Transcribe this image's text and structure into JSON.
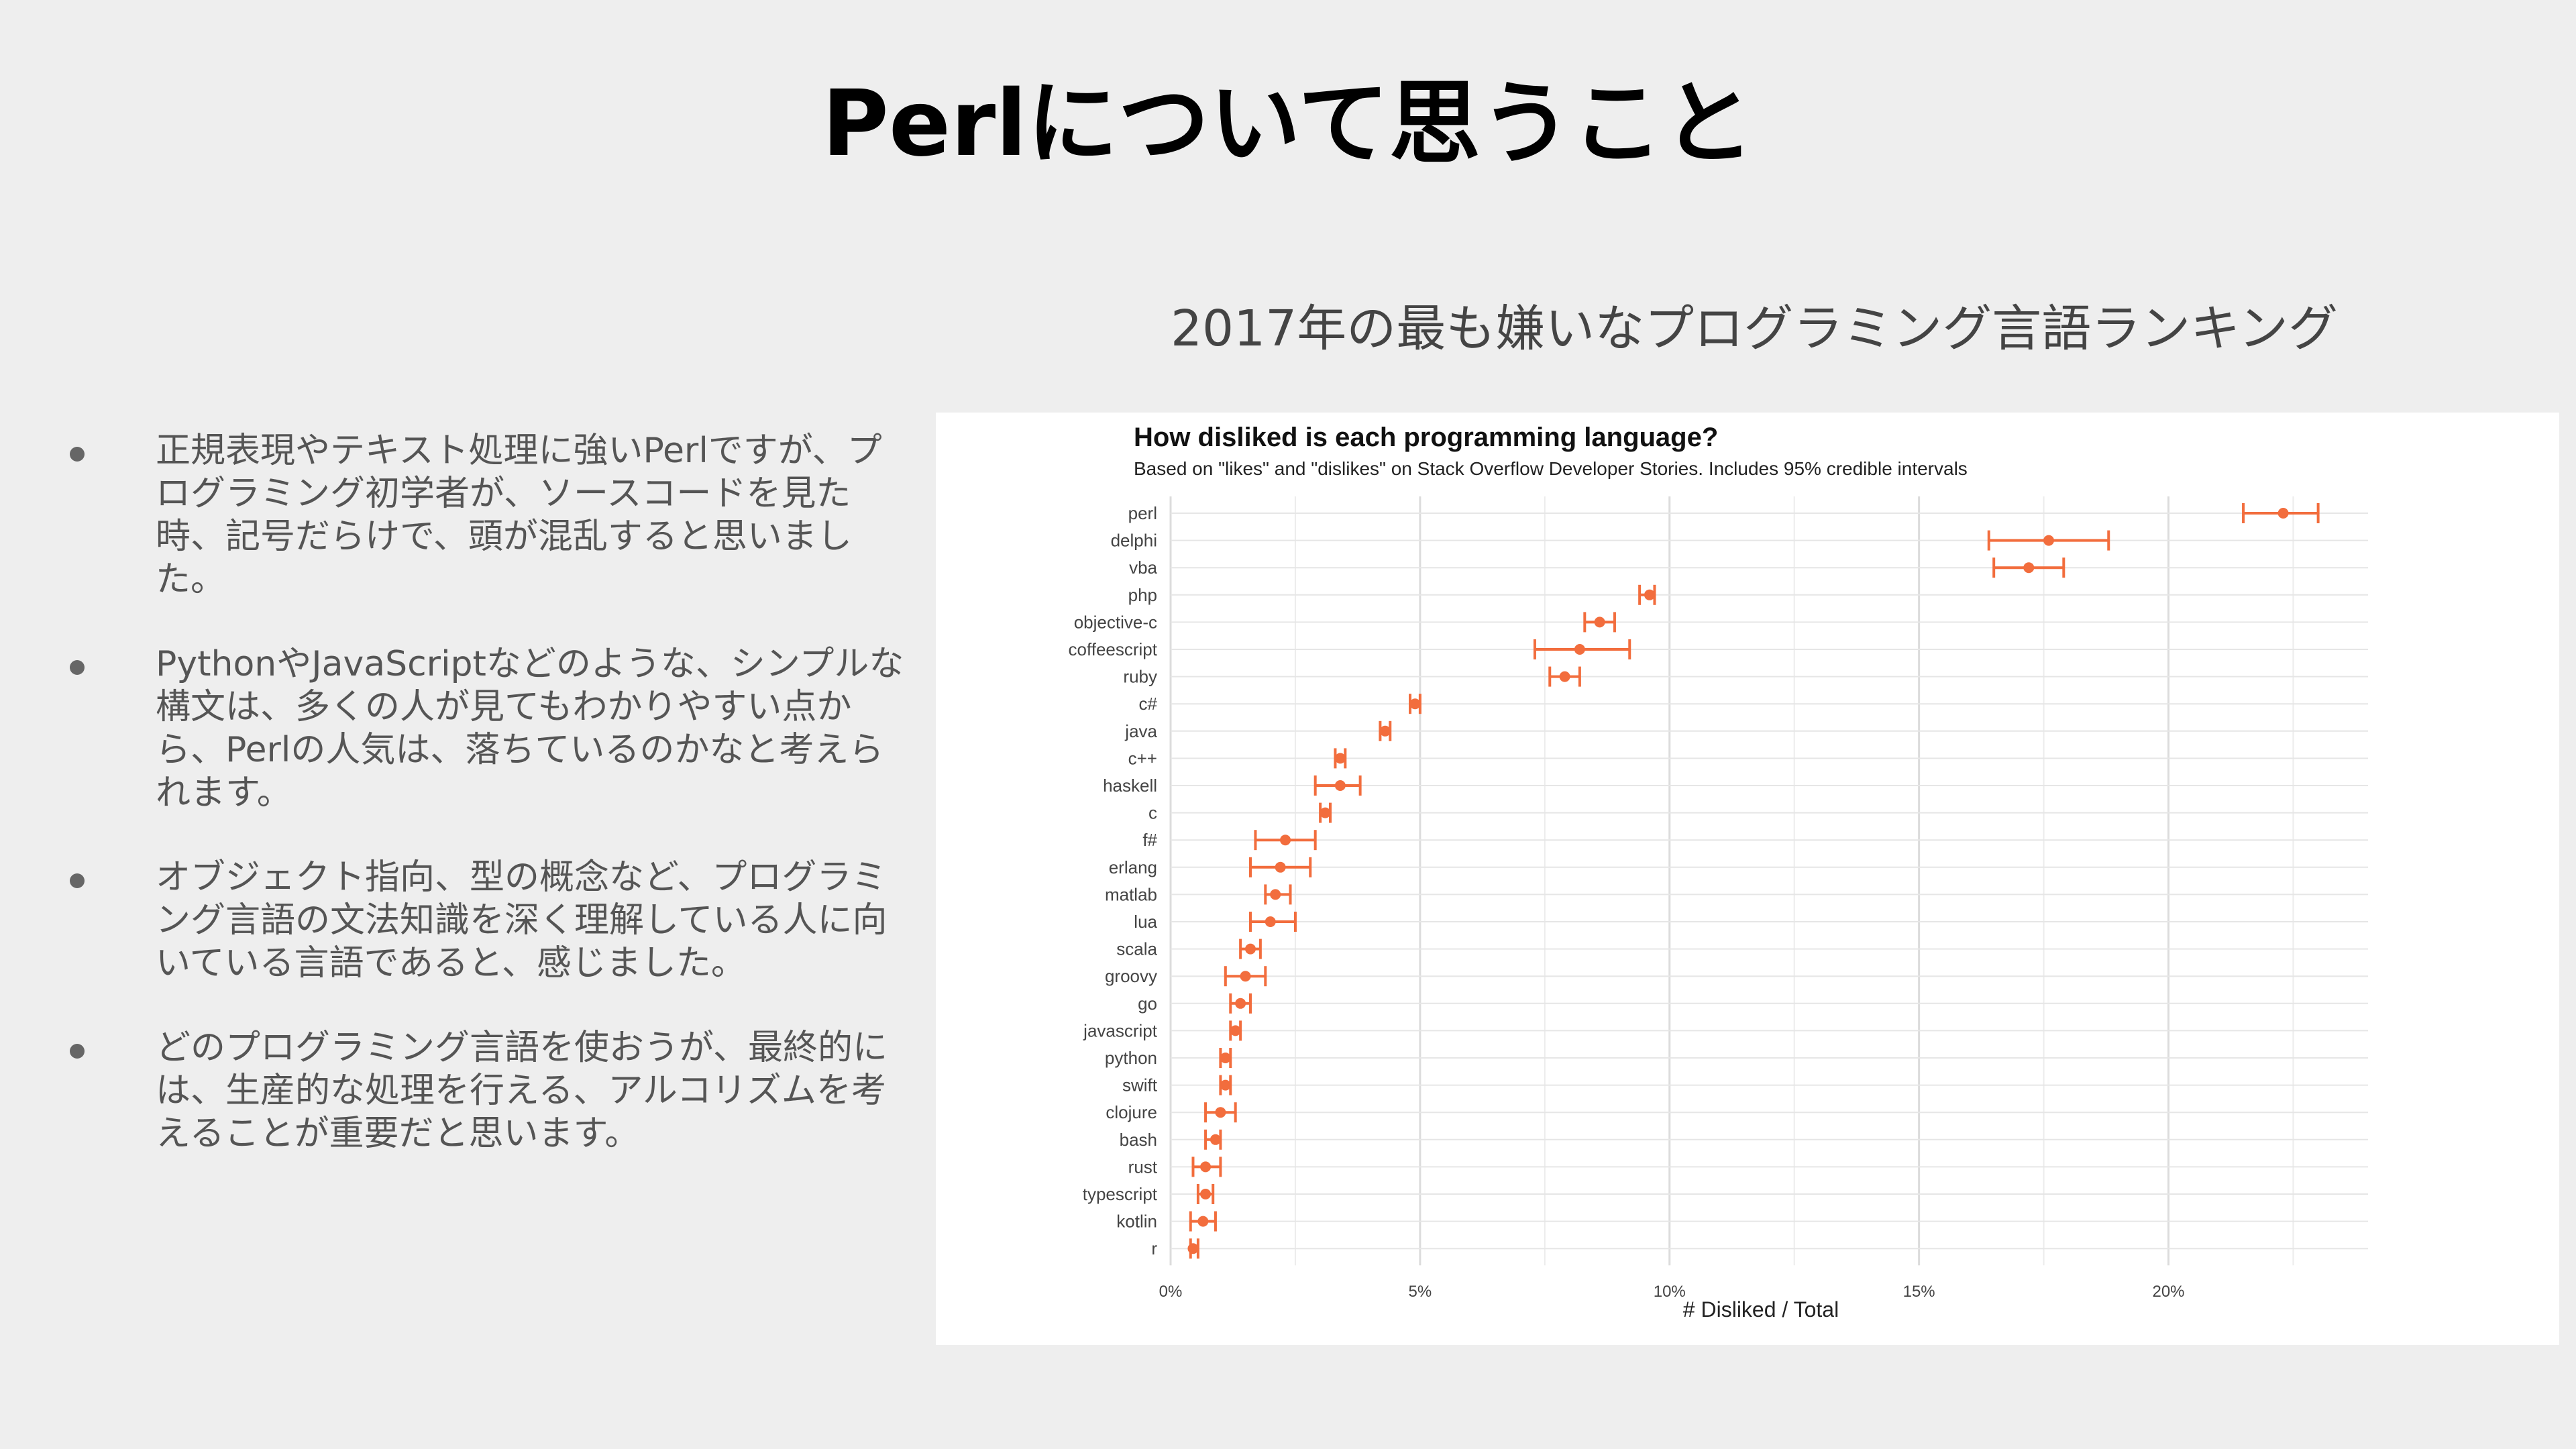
{
  "slide": {
    "title": "Perlについて思うこと",
    "chart_heading": "2017年の最も嫌いなプログラミング言語ランキング"
  },
  "bullets": [
    {
      "text": "正規表現やテキスト処理に強いPerlですが、プログラミング初学者が、ソースコードを見た時、記号だらけで、頭が混乱すると思いました。"
    },
    {
      "text": "PythonやJavaScriptなどのような、シンプルな構文は、多くの人が見てもわかりやすい点から、Perlの人気は、落ちているのかなと考えられます。"
    },
    {
      "text": "オブジェクト指向、型の概念など、プログラミング言語の文法知識を深く理解している人に向いている言語であると、感じました。"
    },
    {
      "text": "どのプログラミング言語を使おうが、最終的には、生産的な処理を行える、アルコリズムを考えることが重要だと思います。"
    }
  ],
  "colors": {
    "background": "#eeeeee",
    "accent": "#f26d3d",
    "grid": "#e6e6e6"
  },
  "chart_data": {
    "type": "scatter",
    "title": "How disliked is each programming language?",
    "subtitle": "Based on \"likes\" and \"dislikes\" on Stack Overflow Developer Stories. Includes 95% credible intervals",
    "xlabel": "# Disliked / Total",
    "ylabel": "",
    "xlim": [
      0,
      24
    ],
    "x_ticks": [
      0,
      5,
      10,
      15,
      20
    ],
    "x_tick_labels": [
      "0%",
      "5%",
      "10%",
      "15%",
      "20%"
    ],
    "grid": true,
    "categories": [
      "perl",
      "delphi",
      "vba",
      "php",
      "objective-c",
      "coffeescript",
      "ruby",
      "c#",
      "java",
      "c++",
      "haskell",
      "c",
      "f#",
      "erlang",
      "matlab",
      "lua",
      "scala",
      "groovy",
      "go",
      "javascript",
      "python",
      "swift",
      "clojure",
      "bash",
      "rust",
      "typescript",
      "kotlin",
      "r"
    ],
    "series": [
      {
        "values": [
          22.3,
          17.6,
          17.2,
          9.6,
          8.6,
          8.2,
          7.9,
          4.9,
          4.3,
          3.4,
          3.4,
          3.1,
          2.3,
          2.2,
          2.1,
          2.0,
          1.6,
          1.5,
          1.4,
          1.3,
          1.1,
          1.1,
          1.0,
          0.9,
          0.7,
          0.7,
          0.65,
          0.45
        ],
        "lower": [
          21.5,
          16.4,
          16.5,
          9.4,
          8.3,
          7.3,
          7.6,
          4.8,
          4.2,
          3.3,
          2.9,
          3.0,
          1.7,
          1.6,
          1.9,
          1.6,
          1.4,
          1.1,
          1.2,
          1.2,
          1.0,
          1.0,
          0.7,
          0.7,
          0.45,
          0.55,
          0.4,
          0.4
        ],
        "upper": [
          23.0,
          18.8,
          17.9,
          9.7,
          8.9,
          9.2,
          8.2,
          5.0,
          4.4,
          3.5,
          3.8,
          3.2,
          2.9,
          2.8,
          2.4,
          2.5,
          1.8,
          1.9,
          1.6,
          1.4,
          1.2,
          1.2,
          1.3,
          1.0,
          1.0,
          0.85,
          0.9,
          0.55
        ]
      }
    ]
  }
}
